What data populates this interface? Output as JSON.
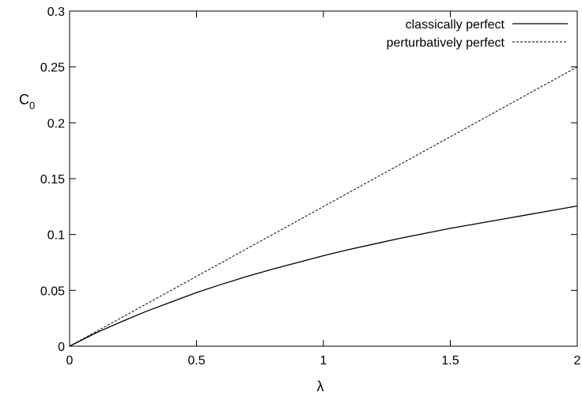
{
  "chart_data": {
    "type": "line",
    "xlabel": "λ",
    "ylabel": "C",
    "ylabel_sub": "0",
    "xlim": [
      0,
      2
    ],
    "ylim": [
      0,
      0.3
    ],
    "xticks": [
      0,
      0.5,
      1,
      1.5,
      2
    ],
    "xtick_labels": [
      "0",
      "0.5",
      "1",
      "1.5",
      "2"
    ],
    "yticks": [
      0,
      0.05,
      0.1,
      0.15,
      0.2,
      0.25,
      0.3
    ],
    "ytick_labels": [
      "0",
      "0.05",
      "0.1",
      "0.15",
      "0.2",
      "0.25",
      "0.3"
    ],
    "grid": false,
    "legend_position": "top-right",
    "series": [
      {
        "name": "classically perfect",
        "style": "solid",
        "color": "#000000",
        "x": [
          0,
          0.1,
          0.2,
          0.3,
          0.4,
          0.5,
          0.6,
          0.7,
          0.8,
          0.9,
          1.0,
          1.1,
          1.2,
          1.3,
          1.4,
          1.5,
          1.6,
          1.7,
          1.8,
          1.9,
          2.0
        ],
        "y": [
          0,
          0.0115,
          0.0215,
          0.031,
          0.0395,
          0.048,
          0.0555,
          0.0625,
          0.069,
          0.075,
          0.081,
          0.0865,
          0.0915,
          0.0965,
          0.101,
          0.1055,
          0.1095,
          0.1135,
          0.1175,
          0.1215,
          0.1255
        ]
      },
      {
        "name": "perturbatively perfect",
        "style": "dashed",
        "color": "#000000",
        "x": [
          0,
          0.1,
          0.2,
          0.3,
          0.4,
          0.5,
          0.6,
          0.7,
          0.8,
          0.9,
          1.0,
          1.1,
          1.2,
          1.3,
          1.4,
          1.5,
          1.6,
          1.7,
          1.8,
          1.9,
          2.0
        ],
        "y": [
          0,
          0.0125,
          0.025,
          0.0375,
          0.05,
          0.0625,
          0.075,
          0.0875,
          0.1,
          0.1125,
          0.125,
          0.1375,
          0.15,
          0.1625,
          0.175,
          0.1875,
          0.2,
          0.2125,
          0.225,
          0.2375,
          0.25
        ]
      }
    ]
  }
}
